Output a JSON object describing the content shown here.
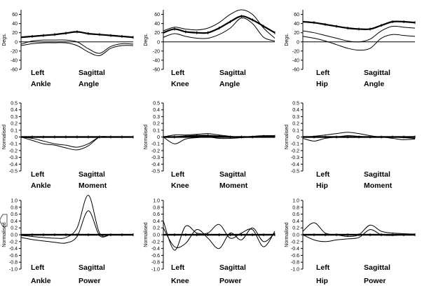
{
  "chart_data": [
    {
      "type": "line",
      "side": "Left",
      "joint": "Ankle",
      "plane": "Sagittal",
      "measure": "Angle",
      "ylabel": "Degs.",
      "ylim": [
        -60,
        70
      ],
      "yticks": [
        "60",
        "40",
        "20",
        "0",
        "-20",
        "-40",
        "-60"
      ],
      "ytick_values": [
        60,
        40,
        20,
        0,
        -20,
        -40,
        -60
      ],
      "x": [
        0,
        10,
        20,
        30,
        40,
        50,
        60,
        70,
        80,
        90,
        100
      ],
      "series": [
        {
          "role": "mean",
          "values": [
            10,
            12,
            14,
            16,
            19,
            22,
            18,
            16,
            14,
            12,
            10
          ]
        },
        {
          "role": "band",
          "values": [
            -5,
            2,
            4,
            4,
            4,
            0,
            -15,
            -25,
            -10,
            -4,
            -5
          ]
        },
        {
          "role": "band",
          "values": [
            -8,
            -4,
            -2,
            -2,
            -2,
            -8,
            -22,
            -30,
            -14,
            -8,
            -8
          ]
        }
      ]
    },
    {
      "type": "line",
      "side": "Left",
      "joint": "Knee",
      "plane": "Sagittal",
      "measure": "Angle",
      "ylabel": "Degs.",
      "ylim": [
        -60,
        70
      ],
      "yticks": [
        "60",
        "40",
        "20",
        "0",
        "-20",
        "-40",
        "-60"
      ],
      "ytick_values": [
        60,
        40,
        20,
        0,
        -20,
        -40,
        -60
      ],
      "x": [
        0,
        10,
        20,
        30,
        40,
        50,
        60,
        70,
        80,
        90,
        100
      ],
      "series": [
        {
          "role": "mean",
          "values": [
            20,
            28,
            22,
            20,
            20,
            30,
            44,
            56,
            48,
            34,
            20
          ]
        },
        {
          "role": "band",
          "values": [
            24,
            32,
            28,
            26,
            30,
            42,
            60,
            70,
            60,
            30,
            8
          ]
        },
        {
          "role": "band",
          "values": [
            10,
            18,
            12,
            8,
            8,
            16,
            30,
            52,
            40,
            10,
            2
          ]
        }
      ]
    },
    {
      "type": "line",
      "side": "Left",
      "joint": "Hip",
      "plane": "Sagittal",
      "measure": "Angle",
      "ylabel": "Degs.",
      "ylim": [
        -60,
        70
      ],
      "yticks": [
        "60",
        "40",
        "20",
        "0",
        "-20",
        "-40",
        "-60"
      ],
      "ytick_values": [
        60,
        40,
        20,
        0,
        -20,
        -40,
        -60
      ],
      "x": [
        0,
        10,
        20,
        30,
        40,
        50,
        60,
        70,
        80,
        90,
        100
      ],
      "series": [
        {
          "role": "mean",
          "values": [
            44,
            42,
            38,
            34,
            30,
            28,
            28,
            36,
            44,
            44,
            42
          ]
        },
        {
          "role": "band",
          "values": [
            24,
            20,
            14,
            8,
            2,
            0,
            6,
            24,
            34,
            32,
            30
          ]
        },
        {
          "role": "band",
          "values": [
            12,
            8,
            2,
            -6,
            -14,
            -18,
            -14,
            8,
            16,
            14,
            12
          ]
        }
      ]
    },
    {
      "type": "line",
      "side": "Left",
      "joint": "Ankle",
      "plane": "Sagittal",
      "measure": "Moment",
      "ylabel": "Normalised",
      "ylim": [
        -0.5,
        0.5
      ],
      "yticks": [
        "0.5",
        "0.4",
        "0.3",
        "0.2",
        "0.1",
        "0",
        "-0.1",
        "-0.2",
        "-0.3",
        "-0.4",
        "-0.5"
      ],
      "ytick_values": [
        0.5,
        0.4,
        0.3,
        0.2,
        0.1,
        0,
        -0.1,
        -0.2,
        -0.3,
        -0.4,
        -0.5
      ],
      "x": [
        0,
        10,
        20,
        30,
        40,
        50,
        60,
        70,
        80,
        90,
        100
      ],
      "series": [
        {
          "role": "mean",
          "values": [
            0,
            0,
            0,
            0,
            0,
            0,
            0,
            0,
            0,
            0,
            0
          ]
        },
        {
          "role": "band",
          "values": [
            0,
            -0.02,
            -0.06,
            -0.1,
            -0.12,
            -0.15,
            -0.1,
            0,
            0,
            0,
            0
          ]
        },
        {
          "role": "band",
          "values": [
            0,
            -0.05,
            -0.1,
            -0.12,
            -0.16,
            -0.19,
            -0.13,
            0,
            0,
            0,
            0
          ]
        }
      ]
    },
    {
      "type": "line",
      "side": "Left",
      "joint": "Knee",
      "plane": "Sagittal",
      "measure": "Moment",
      "ylabel": "Normalised",
      "ylim": [
        -0.5,
        0.5
      ],
      "yticks": [
        "0.5",
        "0.4",
        "0.3",
        "0.2",
        "0.1",
        "0",
        "-0.1",
        "-0.2",
        "-0.3",
        "-0.4",
        "-0.5"
      ],
      "ytick_values": [
        0.5,
        0.4,
        0.3,
        0.2,
        0.1,
        0,
        -0.1,
        -0.2,
        -0.3,
        -0.4,
        -0.5
      ],
      "x": [
        0,
        10,
        20,
        30,
        40,
        50,
        60,
        70,
        80,
        90,
        100
      ],
      "series": [
        {
          "role": "mean",
          "values": [
            0,
            0,
            0.01,
            0.02,
            0.02,
            0.01,
            0,
            0,
            0,
            0.01,
            0.01
          ]
        },
        {
          "role": "band",
          "values": [
            0,
            0.03,
            0.03,
            0.04,
            0.05,
            0.03,
            0.01,
            0,
            0.01,
            0.02,
            0.02
          ]
        },
        {
          "role": "band",
          "values": [
            0,
            -0.1,
            -0.03,
            -0.01,
            0,
            -0.02,
            -0.02,
            -0.01,
            0,
            0,
            0
          ]
        }
      ]
    },
    {
      "type": "line",
      "side": "Left",
      "joint": "Hip",
      "plane": "Sagittal",
      "measure": "Moment",
      "ylabel": "Normalised",
      "ylim": [
        -0.5,
        0.5
      ],
      "yticks": [
        "0.5",
        "0.4",
        "0.3",
        "0.2",
        "0.1",
        "0",
        "-0.1",
        "-0.2",
        "-0.3",
        "-0.4",
        "-0.5"
      ],
      "ytick_values": [
        0.5,
        0.4,
        0.3,
        0.2,
        0.1,
        0,
        -0.1,
        -0.2,
        -0.3,
        -0.4,
        -0.5
      ],
      "x": [
        0,
        10,
        20,
        30,
        40,
        50,
        60,
        70,
        80,
        90,
        100
      ],
      "series": [
        {
          "role": "mean",
          "values": [
            0,
            0,
            0,
            0,
            0,
            0,
            0,
            0,
            0,
            0,
            0
          ]
        },
        {
          "role": "band",
          "values": [
            0,
            0.01,
            0.03,
            0.05,
            0.07,
            0.05,
            0.02,
            0,
            0,
            -0.01,
            -0.02
          ]
        },
        {
          "role": "band",
          "values": [
            -0.02,
            -0.06,
            -0.02,
            0,
            0.02,
            0.01,
            0,
            0,
            -0.02,
            -0.04,
            -0.03
          ]
        }
      ]
    },
    {
      "type": "line",
      "side": "Left",
      "joint": "Ankle",
      "plane": "Sagittal",
      "measure": "Power",
      "ylabel": "Normalised",
      "ylim": [
        -1.0,
        1.0
      ],
      "yticks": [
        "1.0",
        "0.8",
        "0.6",
        "0.4",
        "0.2",
        "0.0",
        "-0.2",
        "-0.4",
        "-0.6",
        "-0.8",
        "-1.0"
      ],
      "ytick_values": [
        1.0,
        0.8,
        0.6,
        0.4,
        0.2,
        0,
        -0.2,
        -0.4,
        -0.6,
        -0.8,
        -1.0
      ],
      "x": [
        0,
        10,
        20,
        30,
        40,
        50,
        60,
        70,
        80,
        90,
        100
      ],
      "series": [
        {
          "role": "mean",
          "values": [
            0,
            0,
            0,
            0,
            0,
            0,
            0,
            0,
            0,
            0,
            0
          ]
        },
        {
          "role": "band",
          "values": [
            -0.02,
            -0.05,
            -0.08,
            -0.1,
            -0.08,
            0.2,
            1.15,
            0.05,
            0,
            0,
            0
          ]
        },
        {
          "role": "band",
          "values": [
            -0.08,
            -0.14,
            -0.18,
            -0.22,
            -0.24,
            -0.05,
            0.7,
            -0.02,
            0,
            0,
            0
          ]
        }
      ]
    },
    {
      "type": "line",
      "side": "Left",
      "joint": "Knee",
      "plane": "Sagittal",
      "measure": "Power",
      "ylabel": "Normalised",
      "ylim": [
        -1.0,
        1.0
      ],
      "yticks": [
        "1.0",
        "0.8",
        "0.6",
        "0.4",
        "0.2",
        "0.0",
        "-0.2",
        "-0.4",
        "-0.6",
        "-0.8",
        "-1.0"
      ],
      "ytick_values": [
        1.0,
        0.8,
        0.6,
        0.4,
        0.2,
        0,
        -0.2,
        -0.4,
        -0.6,
        -0.8,
        -1.0
      ],
      "x": [
        0,
        10,
        20,
        30,
        40,
        50,
        60,
        70,
        80,
        90,
        100
      ],
      "series": [
        {
          "role": "mean",
          "values": [
            0,
            0,
            0,
            0,
            0,
            0,
            0,
            0,
            0,
            0,
            0
          ]
        },
        {
          "role": "band",
          "values": [
            0.4,
            -0.45,
            0.25,
            0.05,
            0.05,
            0.3,
            -0.1,
            0.05,
            0.15,
            -0.35,
            0.1
          ]
        },
        {
          "role": "band",
          "values": [
            0.2,
            -0.35,
            -0.25,
            0.15,
            -0.1,
            -0.4,
            0.05,
            -0.15,
            0.2,
            -0.2,
            0.05
          ]
        }
      ]
    },
    {
      "type": "line",
      "side": "Left",
      "joint": "Hip",
      "plane": "Sagittal",
      "measure": "Power",
      "ylabel": "Normalised",
      "ylim": [
        -1.0,
        1.0
      ],
      "yticks": [
        "1.0",
        "0.8",
        "0.6",
        "0.4",
        "0.2",
        "0.0",
        "-0.2",
        "-0.4",
        "-0.6",
        "-0.8",
        "-1.0"
      ],
      "ytick_values": [
        1.0,
        0.8,
        0.6,
        0.4,
        0.2,
        0,
        -0.2,
        -0.4,
        -0.6,
        -0.8,
        -1.0
      ],
      "x": [
        0,
        10,
        20,
        30,
        40,
        50,
        60,
        70,
        80,
        90,
        100
      ],
      "series": [
        {
          "role": "mean",
          "values": [
            0,
            0,
            0,
            0,
            0,
            0,
            0,
            0,
            0,
            0,
            0
          ]
        },
        {
          "role": "band",
          "values": [
            0.1,
            0.35,
            0.05,
            0,
            -0.05,
            0,
            0.28,
            0.1,
            0.05,
            0.03,
            0.02
          ]
        },
        {
          "role": "band",
          "values": [
            0,
            -0.15,
            -0.2,
            -0.15,
            -0.12,
            -0.08,
            0.15,
            0,
            -0.02,
            0,
            0
          ]
        }
      ]
    }
  ]
}
